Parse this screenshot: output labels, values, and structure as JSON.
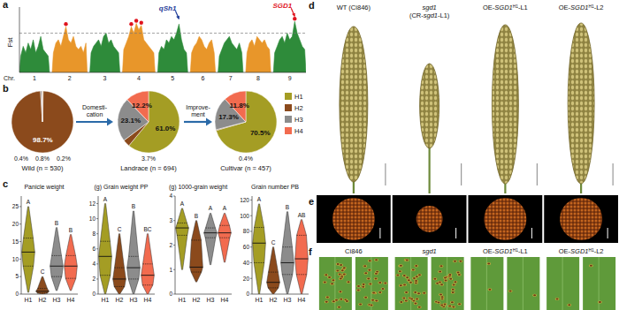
{
  "chart_data": [
    {
      "type": "area",
      "y_label": "Fst",
      "x_label": "Chr.",
      "ylim": [
        0,
        1
      ],
      "tick_labels": "x",
      "threshold": 0.6,
      "series": [
        {
          "name": "1",
          "color": "#2e8b3a",
          "values": [
            0.25,
            0.4,
            0.3,
            0.45,
            0.35,
            0.5,
            0.3,
            0.4,
            0.55,
            0.35,
            0.3,
            0.25
          ]
        },
        {
          "name": "2",
          "color": "#e8962a",
          "values": [
            0.3,
            0.45,
            0.5,
            0.4,
            0.55,
            0.7,
            0.5,
            0.45,
            0.55,
            0.4,
            0.35,
            0.4,
            0.3,
            0.45
          ]
        },
        {
          "name": "3",
          "color": "#2e8b3a",
          "values": [
            0.3,
            0.4,
            0.45,
            0.5,
            0.4,
            0.55,
            0.6,
            0.45,
            0.5,
            0.4,
            0.35,
            0.3
          ]
        },
        {
          "name": "4",
          "color": "#e8962a",
          "values": [
            0.35,
            0.45,
            0.55,
            0.7,
            0.6,
            0.75,
            0.65,
            0.72,
            0.5,
            0.45,
            0.4,
            0.35,
            0.3
          ]
        },
        {
          "name": "5",
          "color": "#2e8b3a",
          "values": [
            0.3,
            0.4,
            0.35,
            0.5,
            0.45,
            0.55,
            0.5,
            0.6,
            0.74,
            0.5,
            0.35,
            0.3
          ]
        },
        {
          "name": "6",
          "color": "#e8962a",
          "values": [
            0.3,
            0.4,
            0.45,
            0.55,
            0.5,
            0.4,
            0.35,
            0.45,
            0.5,
            0.3
          ]
        },
        {
          "name": "7",
          "color": "#2e8b3a",
          "values": [
            0.25,
            0.35,
            0.45,
            0.5,
            0.55,
            0.45,
            0.4,
            0.35,
            0.45,
            0.3
          ]
        },
        {
          "name": "8",
          "color": "#e8962a",
          "values": [
            0.3,
            0.45,
            0.5,
            0.4,
            0.55,
            0.5,
            0.45,
            0.5,
            0.4,
            0.35
          ]
        },
        {
          "name": "9",
          "color": "#2e8b3a",
          "values": [
            0.3,
            0.4,
            0.5,
            0.55,
            0.45,
            0.6,
            0.5,
            0.55,
            0.78,
            0.6,
            0.5,
            0.4,
            0.35
          ]
        }
      ],
      "peaks": [
        {
          "chromosome": "2",
          "index": 5
        },
        {
          "chromosome": "4",
          "index": 3
        },
        {
          "chromosome": "4",
          "index": 5
        },
        {
          "chromosome": "4",
          "index": 7
        },
        {
          "chromosome": "9",
          "index": 8
        }
      ],
      "annotations": [
        {
          "text": "qSh1",
          "chromosome": "5",
          "index": 8
        },
        {
          "text": "SGD1",
          "chromosome": "9",
          "index": 8
        }
      ]
    },
    {
      "type": "pie",
      "title": "Wild (n = 530)",
      "categories": [
        "H1",
        "H2",
        "H3",
        "H4"
      ],
      "values": [
        0.4,
        98.7,
        0.8,
        0.2
      ],
      "value_labels": [
        "0.4%",
        "98.7%",
        "0.8%",
        "0.2%"
      ],
      "colors": [
        "#a49d24",
        "#8b4a1c",
        "#8c8c8c",
        "#f26b4f"
      ],
      "data_labels": true
    },
    {
      "type": "pie",
      "title": "Landrace (n = 694)",
      "categories": [
        "H1",
        "H2",
        "H3",
        "H4"
      ],
      "values": [
        61.0,
        3.7,
        23.1,
        12.2
      ],
      "value_labels": [
        "61.0%",
        "3.7%",
        "23.1%",
        "12.2%"
      ],
      "colors": [
        "#a49d24",
        "#8b4a1c",
        "#8c8c8c",
        "#f26b4f"
      ],
      "data_labels": true
    },
    {
      "type": "pie",
      "title": "Cultivar (n = 457)",
      "categories": [
        "H1",
        "H2",
        "H3",
        "H4"
      ],
      "values": [
        70.5,
        0.4,
        17.3,
        11.8
      ],
      "value_labels": [
        "70.5%",
        "0.4%",
        "17.3%",
        "11.8%"
      ],
      "colors": [
        "#a49d24",
        "#8b4a1c",
        "#8c8c8c",
        "#f26b4f"
      ],
      "data_labels": true,
      "legend": "right"
    },
    {
      "type": "violin",
      "title": "Panicle weight",
      "categories": [
        "H1",
        "H2",
        "H3",
        "H4"
      ],
      "colors": [
        "#a49d24",
        "#8b4a1c",
        "#8c8c8c",
        "#f26b4f"
      ],
      "min": [
        0.5,
        0,
        1,
        1
      ],
      "q1": [
        8,
        0.3,
        5,
        4.5
      ],
      "median": [
        12,
        0.8,
        8,
        8
      ],
      "q3": [
        16,
        1.6,
        11,
        11
      ],
      "max": [
        25,
        5,
        19,
        17
      ],
      "letters": [
        "A",
        "C",
        "B",
        "B"
      ],
      "ylim": [
        0,
        28
      ],
      "yticks": [
        0,
        5,
        10,
        15,
        20,
        25
      ]
    },
    {
      "type": "violin",
      "title": "(g) Grain weight PP",
      "categories": [
        "H1",
        "H2",
        "H3",
        "H4"
      ],
      "colors": [
        "#a49d24",
        "#8b4a1c",
        "#8c8c8c",
        "#f26b4f"
      ],
      "min": [
        0,
        0,
        0,
        0
      ],
      "q1": [
        2.5,
        1,
        2,
        1.2
      ],
      "median": [
        5,
        2,
        3.5,
        2.5
      ],
      "q3": [
        7,
        3.5,
        5,
        4
      ],
      "max": [
        12,
        8,
        11,
        8
      ],
      "letters": [
        "A",
        "C",
        "B",
        "BC"
      ],
      "ylim": [
        0,
        13
      ],
      "yticks": [
        0,
        2,
        4,
        6,
        8,
        10,
        12
      ]
    },
    {
      "type": "violin",
      "title": "(g) 1000-grain weight",
      "categories": [
        "H1",
        "H2",
        "H3",
        "H4"
      ],
      "colors": [
        "#a49d24",
        "#8b4a1c",
        "#8c8c8c",
        "#f26b4f"
      ],
      "min": [
        1,
        0.5,
        1.2,
        1.3
      ],
      "q1": [
        2.4,
        0.9,
        2.3,
        2.3
      ],
      "median": [
        2.7,
        1.1,
        2.5,
        2.5
      ],
      "q3": [
        2.9,
        2.2,
        2.7,
        2.8
      ],
      "max": [
        3.5,
        3,
        3.3,
        3.3
      ],
      "letters": [
        "A",
        "B",
        "A",
        "A"
      ],
      "ylim": [
        0,
        4
      ],
      "yticks": [
        0,
        1,
        2,
        3,
        4
      ]
    },
    {
      "type": "violin",
      "title": "Grain number PB",
      "categories": [
        "H1",
        "H2",
        "H3",
        "H4"
      ],
      "colors": [
        "#a49d24",
        "#8b4a1c",
        "#8c8c8c",
        "#f26b4f"
      ],
      "min": [
        0,
        0,
        0,
        0
      ],
      "q1": [
        40,
        8,
        25,
        25
      ],
      "median": [
        65,
        15,
        40,
        45
      ],
      "q3": [
        85,
        28,
        60,
        75
      ],
      "max": [
        115,
        60,
        105,
        95
      ],
      "letters": [
        "A",
        "C",
        "B",
        "AB"
      ],
      "ylim": [
        0,
        125
      ],
      "yticks": [
        0,
        20,
        40,
        60,
        80,
        100,
        120
      ]
    }
  ],
  "pie_arrows": [
    {
      "lines": [
        "Domesti-",
        "cation"
      ]
    },
    {
      "lines": [
        "Improve-",
        "ment"
      ]
    }
  ],
  "panel_labels": [
    "a",
    "b",
    "c",
    "d",
    "e",
    "f"
  ],
  "photos": {
    "panicles": {
      "labels": [
        [
          [
            {
              "text": "WT (Ci846)"
            }
          ]
        ],
        [
          [
            {
              "text": "sgd1",
              "italic": true
            }
          ],
          [
            {
              "text": "(CR-"
            },
            {
              "text": "sgd1",
              "italic": true
            },
            {
              "text": "-L1)"
            }
          ]
        ],
        [
          [
            {
              "text": "OE-"
            },
            {
              "text": "SGD1",
              "italic": true
            },
            {
              "text": "H1",
              "sup": true
            },
            {
              "text": "-L1"
            }
          ]
        ],
        [
          [
            {
              "text": "OE-"
            },
            {
              "text": "SGD1",
              "italic": true
            },
            {
              "text": "H1",
              "sup": true
            },
            {
              "text": "-L2"
            }
          ]
        ]
      ]
    },
    "leaves": {
      "labels": [
        [
          [
            {
              "text": "Ci846"
            }
          ]
        ],
        [
          [
            {
              "text": "sgd1",
              "italic": true
            }
          ]
        ],
        [
          [
            {
              "text": "OE-"
            },
            {
              "text": "SGD1",
              "italic": true
            },
            {
              "text": "H1",
              "sup": true
            },
            {
              "text": "-L1"
            }
          ]
        ],
        [
          [
            {
              "text": "OE-"
            },
            {
              "text": "SGD1",
              "italic": true
            },
            {
              "text": "H1",
              "sup": true
            },
            {
              "text": "-L2"
            }
          ]
        ]
      ]
    }
  }
}
